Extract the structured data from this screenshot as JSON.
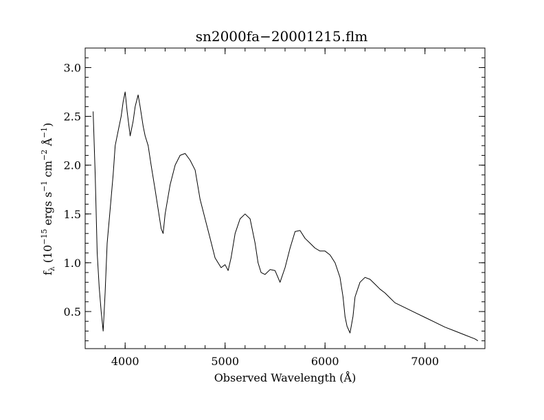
{
  "chart_data": {
    "type": "line",
    "title": "sn2000fa−20001215.flm",
    "xlabel": "Observed Wavelength (Å)",
    "ylabel": {
      "prefix": "f",
      "sub": "λ",
      "p1": " (10",
      "sup1": "−15",
      "p2": " ergs s",
      "sup2": "−1",
      "p3": " cm",
      "sup3": "−2",
      "p4": " Å",
      "sup4": "−1",
      "p5": ")"
    },
    "xlim": [
      3600,
      7600
    ],
    "ylim": [
      0.12,
      3.2
    ],
    "xticks": [
      4000,
      5000,
      6000,
      7000
    ],
    "xtick_labels": [
      "4000",
      "5000",
      "6000",
      "7000"
    ],
    "yticks": [
      0.5,
      1.0,
      1.5,
      2.0,
      2.5,
      3.0
    ],
    "ytick_labels": [
      "0.5",
      "1.0",
      "1.5",
      "2.0",
      "2.5",
      "3.0"
    ],
    "x_minor_step": 200,
    "y_minor_step": 0.1,
    "grid": false,
    "line_color": "#000000",
    "series": [
      {
        "x": [
          3680,
          3700,
          3720,
          3740,
          3760,
          3780,
          3800,
          3820,
          3850,
          3880,
          3900,
          3930,
          3960,
          3980,
          4000,
          4020,
          4050,
          4080,
          4100,
          4130,
          4150,
          4180,
          4200,
          4230,
          4260,
          4300,
          4330,
          4360,
          4380,
          4400,
          4450,
          4500,
          4550,
          4600,
          4650,
          4700,
          4750,
          4800,
          4850,
          4900,
          4930,
          4960,
          5000,
          5030,
          5060,
          5100,
          5150,
          5200,
          5250,
          5300,
          5330,
          5360,
          5400,
          5450,
          5500,
          5550,
          5600,
          5650,
          5700,
          5750,
          5800,
          5850,
          5900,
          5950,
          6000,
          6050,
          6100,
          6150,
          6180,
          6200,
          6220,
          6250,
          6280,
          6300,
          6350,
          6400,
          6450,
          6500,
          6550,
          6600,
          6650,
          6700,
          6800,
          6900,
          7000,
          7100,
          7200,
          7300,
          7400,
          7500,
          7530
        ],
        "y": [
          2.55,
          1.9,
          1.1,
          0.75,
          0.5,
          0.3,
          0.7,
          1.2,
          1.55,
          1.9,
          2.2,
          2.35,
          2.5,
          2.65,
          2.75,
          2.55,
          2.3,
          2.45,
          2.6,
          2.72,
          2.6,
          2.4,
          2.3,
          2.2,
          2.0,
          1.75,
          1.55,
          1.35,
          1.3,
          1.5,
          1.8,
          2.0,
          2.1,
          2.12,
          2.05,
          1.95,
          1.65,
          1.45,
          1.25,
          1.05,
          1.0,
          0.95,
          0.98,
          0.92,
          1.05,
          1.3,
          1.45,
          1.5,
          1.45,
          1.2,
          1.0,
          0.9,
          0.88,
          0.93,
          0.92,
          0.8,
          0.95,
          1.15,
          1.32,
          1.33,
          1.25,
          1.2,
          1.15,
          1.12,
          1.12,
          1.08,
          1.0,
          0.85,
          0.65,
          0.45,
          0.35,
          0.28,
          0.45,
          0.65,
          0.8,
          0.85,
          0.83,
          0.78,
          0.73,
          0.69,
          0.64,
          0.59,
          0.54,
          0.49,
          0.44,
          0.39,
          0.34,
          0.3,
          0.26,
          0.22,
          0.2
        ]
      }
    ]
  }
}
